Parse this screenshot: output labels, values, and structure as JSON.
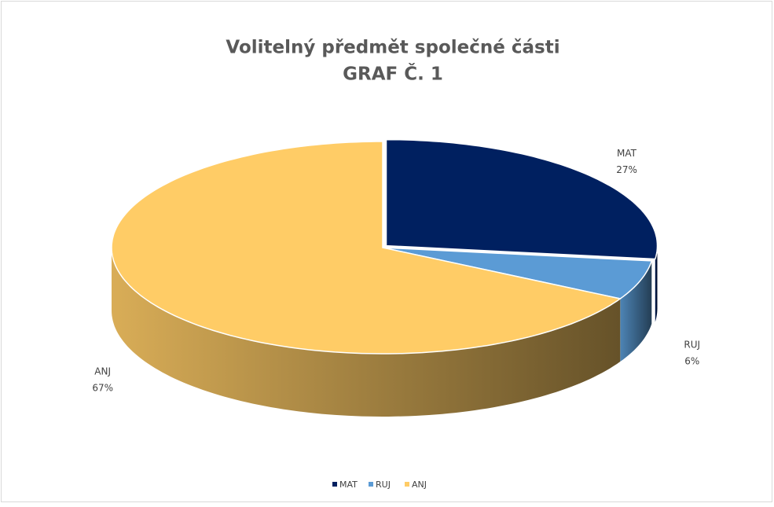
{
  "chart_data": {
    "type": "pie3d",
    "title": "Volitelný předmět společné části",
    "subtitle": "GRAF Č. 1",
    "categories": [
      "MAT",
      "RUJ",
      "ANJ"
    ],
    "values": [
      27,
      6,
      67
    ],
    "value_labels": [
      "27%",
      "6%",
      "67%"
    ],
    "colors": [
      "#002060",
      "#5b9bd5",
      "#ffcc66"
    ],
    "legend": "bottom"
  }
}
